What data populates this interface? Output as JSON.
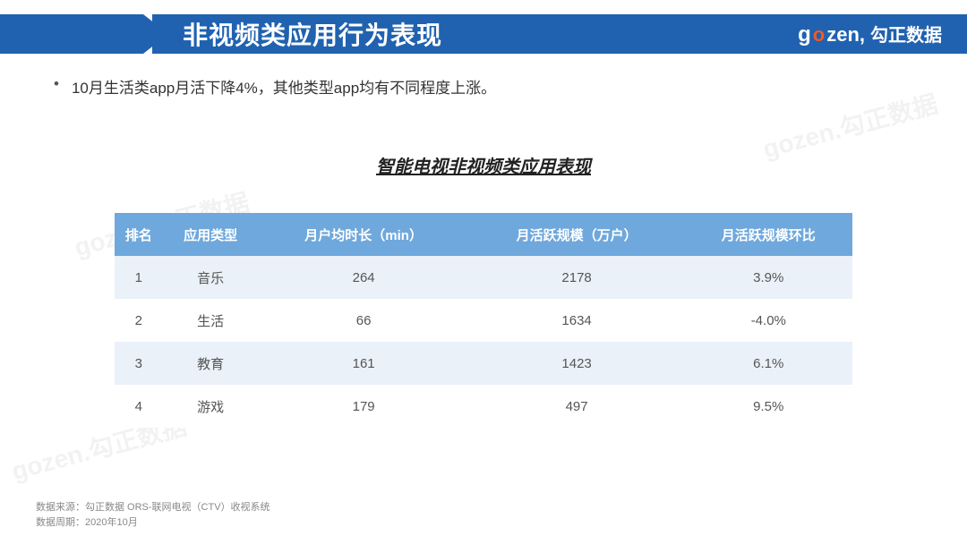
{
  "header": {
    "title": "非视频类应用行为表现",
    "brand_latin": "gozen",
    "brand_cn": "勾正数据",
    "banner_bg": "#2062af",
    "accent_color": "#f15a24"
  },
  "bullet": {
    "text": "10月生活类app月活下降4%，其他类型app均有不同程度上涨。"
  },
  "table": {
    "title": "智能电视非视频类应用表现",
    "header_bg": "#6fa8dc",
    "row_odd_bg": "#eaf1f8",
    "row_even_bg": "#ffffff",
    "text_color": "#555555",
    "columns": [
      "排名",
      "应用类型",
      "月户均时长（min）",
      "月活跃规模（万户）",
      "月活跃规模环比"
    ],
    "rows": [
      [
        "1",
        "音乐",
        "264",
        "2178",
        "3.9%"
      ],
      [
        "2",
        "生活",
        "66",
        "1634",
        "-4.0%"
      ],
      [
        "3",
        "教育",
        "161",
        "1423",
        "6.1%"
      ],
      [
        "4",
        "游戏",
        "179",
        "497",
        "9.5%"
      ]
    ]
  },
  "footer": {
    "line1": "数据来源：勾正数据 ORS-联网电视（CTV）收视系统",
    "line2": "数据周期：2020年10月"
  },
  "watermark": "gozen.勾正数据"
}
